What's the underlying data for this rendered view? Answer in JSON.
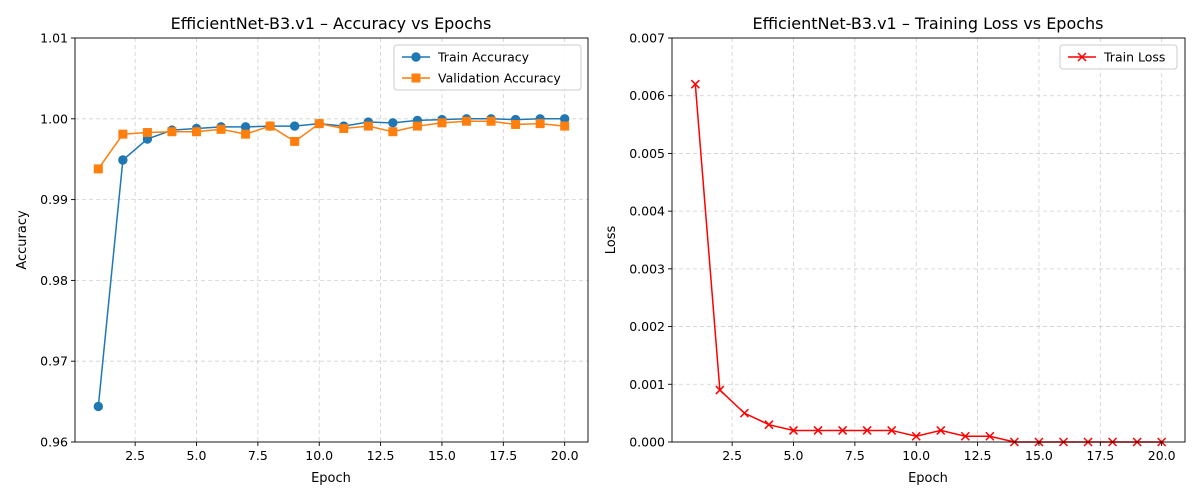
{
  "chart_data": [
    {
      "type": "line",
      "title": "EfficientNet-B3.v1 – Accuracy vs Epochs",
      "xlabel": "Epoch",
      "ylabel": "Accuracy",
      "xlim": [
        0.05,
        20.95
      ],
      "ylim": [
        0.96,
        1.01
      ],
      "xticks": [
        "2.5",
        "5.0",
        "7.5",
        "10.0",
        "12.5",
        "15.0",
        "17.5",
        "20.0"
      ],
      "xtick_values": [
        2.5,
        5.0,
        7.5,
        10.0,
        12.5,
        15.0,
        17.5,
        20.0
      ],
      "yticks": [
        "0.96",
        "0.97",
        "0.98",
        "0.99",
        "1.00",
        "1.01"
      ],
      "ytick_values": [
        0.96,
        0.97,
        0.98,
        0.99,
        1.0,
        1.01
      ],
      "grid": true,
      "legend": "upper right",
      "x": [
        1,
        2,
        3,
        4,
        5,
        6,
        7,
        8,
        9,
        10,
        11,
        12,
        13,
        14,
        15,
        16,
        17,
        18,
        19,
        20
      ],
      "series": [
        {
          "name": "Train Accuracy",
          "color": "#1f77b4",
          "marker": "circle",
          "values": [
            0.9644,
            0.9949,
            0.9975,
            0.9986,
            0.9988,
            0.999,
            0.999,
            0.9991,
            0.9991,
            0.9994,
            0.9991,
            0.9996,
            0.9995,
            0.9998,
            0.9999,
            1.0,
            1.0,
            0.9999,
            1.0,
            1.0
          ]
        },
        {
          "name": "Validation Accuracy",
          "color": "#ff7f0e",
          "marker": "square",
          "values": [
            0.9938,
            0.9981,
            0.9983,
            0.9984,
            0.9984,
            0.9987,
            0.9981,
            0.9991,
            0.9972,
            0.9994,
            0.9988,
            0.9991,
            0.9984,
            0.9991,
            0.9995,
            0.9997,
            0.9997,
            0.9993,
            0.9994,
            0.9991
          ]
        }
      ]
    },
    {
      "type": "line",
      "title": "EfficientNet-B3.v1 – Training Loss vs Epochs",
      "xlabel": "Epoch",
      "ylabel": "Loss",
      "xlim": [
        0.05,
        20.95
      ],
      "ylim": [
        0,
        0.007
      ],
      "xticks": [
        "2.5",
        "5.0",
        "7.5",
        "10.0",
        "12.5",
        "15.0",
        "17.5",
        "20.0"
      ],
      "xtick_values": [
        2.5,
        5.0,
        7.5,
        10.0,
        12.5,
        15.0,
        17.5,
        20.0
      ],
      "yticks": [
        "0.000",
        "0.001",
        "0.002",
        "0.003",
        "0.004",
        "0.005",
        "0.006",
        "0.007"
      ],
      "ytick_values": [
        0,
        0.001,
        0.002,
        0.003,
        0.004,
        0.005,
        0.006,
        0.007
      ],
      "grid": true,
      "legend": "upper right",
      "x": [
        1,
        2,
        3,
        4,
        5,
        6,
        7,
        8,
        9,
        10,
        11,
        12,
        13,
        14,
        15,
        16,
        17,
        18,
        19,
        20
      ],
      "series": [
        {
          "name": "Train Loss",
          "color": "#ff0000",
          "marker": "x",
          "values": [
            0.0062,
            0.0009,
            0.0005,
            0.0003,
            0.0002,
            0.0002,
            0.0002,
            0.0002,
            0.0002,
            0.0001,
            0.0002,
            0.0001,
            0.0001,
            0.0,
            0.0,
            0.0,
            0.0,
            0.0,
            0.0,
            0.0
          ]
        }
      ]
    }
  ]
}
